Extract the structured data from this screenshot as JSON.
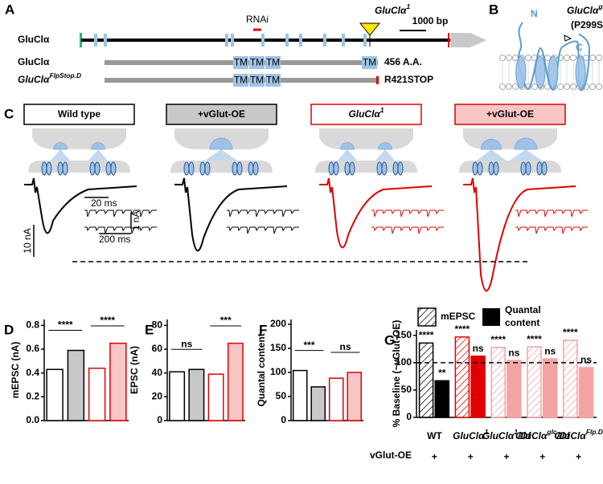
{
  "figure": {
    "A": {
      "label": "A",
      "rnai": "RNAi",
      "allele": {
        "text": "GluClα",
        "sup": "1"
      },
      "scale": "1000 bp",
      "gene": {
        "text": "GluClα"
      },
      "protein": {
        "text": "GluClα"
      },
      "protein_length": "456 A.A.",
      "flpstop": {
        "text": "GluClα",
        "sup": "FlpStop.D"
      },
      "flpstop_note": "R421STOP",
      "tm": "TM"
    },
    "B": {
      "label": "B",
      "n": "N",
      "c": "C",
      "allele": {
        "text": "GluClα",
        "sup": "glc"
      },
      "mutation": "(P299S)"
    },
    "C": {
      "label": "C",
      "conditions": [
        {
          "text": "Wild type"
        },
        {
          "text": "+vGlut-OE"
        },
        {
          "text": "GluClα",
          "sup": "1"
        },
        {
          "text": "+vGlut-OE"
        }
      ],
      "scale_time_short": "20 ms",
      "scale_current_small": "1 nA",
      "scale_time_long": "200 ms",
      "scale_current_large": "10 nA"
    }
  },
  "chart_data": [
    {
      "type": "bar",
      "panel": "D",
      "ylabel": "mEPSC (nA)",
      "categories": [
        null,
        null,
        null,
        null
      ],
      "values": [
        0.43,
        0.59,
        0.44,
        0.65
      ],
      "colors": [
        "#ffffff",
        "#c8c8c8",
        "#ffffff",
        "#f9c6c6"
      ],
      "edge_colors": [
        "#000000",
        "#000000",
        "#e00000",
        "#e00000"
      ],
      "ylim": [
        0,
        0.85
      ],
      "yticks": [
        {
          "value": 0,
          "label": "0.0"
        },
        0.2,
        0.4,
        0.6,
        0.8
      ],
      "annotations": [
        {
          "text": "****",
          "pair": [
            0,
            1
          ]
        },
        {
          "text": "****",
          "pair": [
            2,
            3
          ]
        }
      ]
    },
    {
      "type": "bar",
      "panel": "E",
      "ylabel": "EPSC (nA)",
      "categories": [
        null,
        null,
        null,
        null
      ],
      "values": [
        41,
        43,
        39,
        65
      ],
      "colors": [
        "#ffffff",
        "#c8c8c8",
        "#ffffff",
        "#f9c6c6"
      ],
      "edge_colors": [
        "#000000",
        "#000000",
        "#e00000",
        "#e00000"
      ],
      "ylim": [
        0,
        85
      ],
      "yticks": [
        0,
        20,
        40,
        60,
        80
      ],
      "annotations": [
        {
          "text": "ns",
          "pair": [
            0,
            1
          ]
        },
        {
          "text": "***",
          "pair": [
            2,
            3
          ]
        }
      ]
    },
    {
      "type": "bar",
      "panel": "F",
      "ylabel": "Quantal content",
      "categories": [
        null,
        null,
        null,
        null
      ],
      "values": [
        104,
        70,
        88,
        100
      ],
      "colors": [
        "#ffffff",
        "#c8c8c8",
        "#ffffff",
        "#f9c6c6"
      ],
      "edge_colors": [
        "#000000",
        "#000000",
        "#e00000",
        "#e00000"
      ],
      "ylim": [
        0,
        210
      ],
      "yticks": [
        0,
        50,
        100,
        150,
        200
      ],
      "annotations": [
        {
          "text": "***",
          "pair": [
            0,
            1
          ]
        },
        {
          "text": "ns",
          "pair": [
            2,
            3
          ]
        }
      ]
    },
    {
      "type": "grouped_bar",
      "panel": "G",
      "ylabel": "% Baseline (~vGlut-OE)",
      "categories": [
        {
          "text": "WT"
        },
        {
          "text": "GluClα",
          "sup": "1"
        },
        {
          "text": "GluClα",
          "sup": "1",
          "suffix": "/Df"
        },
        {
          "text": "GluClα",
          "sup": "glc",
          "suffix": "/Df"
        },
        {
          "text": "GluClα",
          "sup": "Flp.D"
        }
      ],
      "category_colors": [
        "#000000",
        "#e00000",
        "#f4a3a3",
        "#f4a3a3",
        "#f4a3a3"
      ],
      "series": [
        {
          "name": "mEPSC",
          "style": "hatched",
          "color": "#000000",
          "values": [
            136,
            147,
            128,
            129,
            141
          ],
          "annotations": [
            "****",
            "****",
            "****",
            "****",
            "****"
          ]
        },
        {
          "name": "Quantal content",
          "style": "solid",
          "color": "#000000",
          "values": [
            67,
            112,
            104,
            107,
            91
          ],
          "annotations": [
            "**",
            "ns",
            "ns",
            "ns",
            "ns"
          ]
        }
      ],
      "ylim": [
        0,
        160
      ],
      "yticks": [
        0,
        50,
        100,
        150
      ],
      "reference_line": 100,
      "row_label": "vGlut-OE",
      "row_values": [
        "+",
        "+",
        "+",
        "+",
        "+"
      ]
    }
  ]
}
